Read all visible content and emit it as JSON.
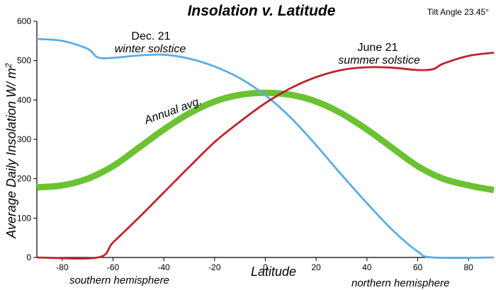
{
  "chart_data": {
    "type": "line",
    "title": "Insolation v. Latitude",
    "subtitle": "Tilt Angle 23.45°",
    "xlabel": "Latitude",
    "ylabel": "Average Daily Insolation W/ m2",
    "ylabel_main": "Average Daily Insolation W/ m",
    "ylabel_sup": "2",
    "xlim": [
      -90,
      90
    ],
    "ylim": [
      0,
      600
    ],
    "x_ticks": [
      -80,
      -60,
      -40,
      -20,
      0,
      20,
      40,
      60,
      80
    ],
    "y_ticks": [
      0,
      100,
      200,
      300,
      400,
      500,
      600
    ],
    "grid": false,
    "series": [
      {
        "key": "winter",
        "color": "#5aaee3",
        "points": [
          [
            -90,
            555
          ],
          [
            -80,
            550
          ],
          [
            -70,
            530
          ],
          [
            -66,
            508
          ],
          [
            -60,
            507
          ],
          [
            -50,
            513
          ],
          [
            -40,
            515
          ],
          [
            -30,
            505
          ],
          [
            -20,
            485
          ],
          [
            -10,
            455
          ],
          [
            0,
            412
          ],
          [
            10,
            355
          ],
          [
            20,
            285
          ],
          [
            30,
            210
          ],
          [
            40,
            138
          ],
          [
            50,
            70
          ],
          [
            60,
            15
          ],
          [
            66,
            0
          ],
          [
            90,
            0
          ]
        ]
      },
      {
        "key": "summer",
        "color": "#c0232f",
        "points": [
          [
            -90,
            0
          ],
          [
            -66,
            0
          ],
          [
            -60,
            38
          ],
          [
            -50,
            100
          ],
          [
            -40,
            165
          ],
          [
            -30,
            230
          ],
          [
            -20,
            293
          ],
          [
            -10,
            345
          ],
          [
            0,
            392
          ],
          [
            10,
            430
          ],
          [
            20,
            458
          ],
          [
            30,
            476
          ],
          [
            40,
            483
          ],
          [
            50,
            482
          ],
          [
            60,
            476
          ],
          [
            66,
            478
          ],
          [
            70,
            492
          ],
          [
            80,
            512
          ],
          [
            90,
            520
          ]
        ]
      },
      {
        "key": "annual",
        "color": "#6bc232",
        "points": [
          [
            -90,
            178
          ],
          [
            -80,
            183
          ],
          [
            -70,
            200
          ],
          [
            -60,
            232
          ],
          [
            -50,
            278
          ],
          [
            -40,
            325
          ],
          [
            -30,
            366
          ],
          [
            -20,
            396
          ],
          [
            -10,
            413
          ],
          [
            0,
            418
          ],
          [
            10,
            413
          ],
          [
            20,
            396
          ],
          [
            30,
            366
          ],
          [
            40,
            325
          ],
          [
            50,
            278
          ],
          [
            60,
            232
          ],
          [
            70,
            200
          ],
          [
            80,
            183
          ],
          [
            90,
            171
          ]
        ]
      }
    ],
    "annotations": {
      "dec_date": "Dec. 21",
      "winter": "winter solstice",
      "june_date": "June 21",
      "summer": "summer solstice",
      "annual": "Annual avg.",
      "south": "southern hemisphere",
      "north": "northern hemisphere"
    }
  }
}
